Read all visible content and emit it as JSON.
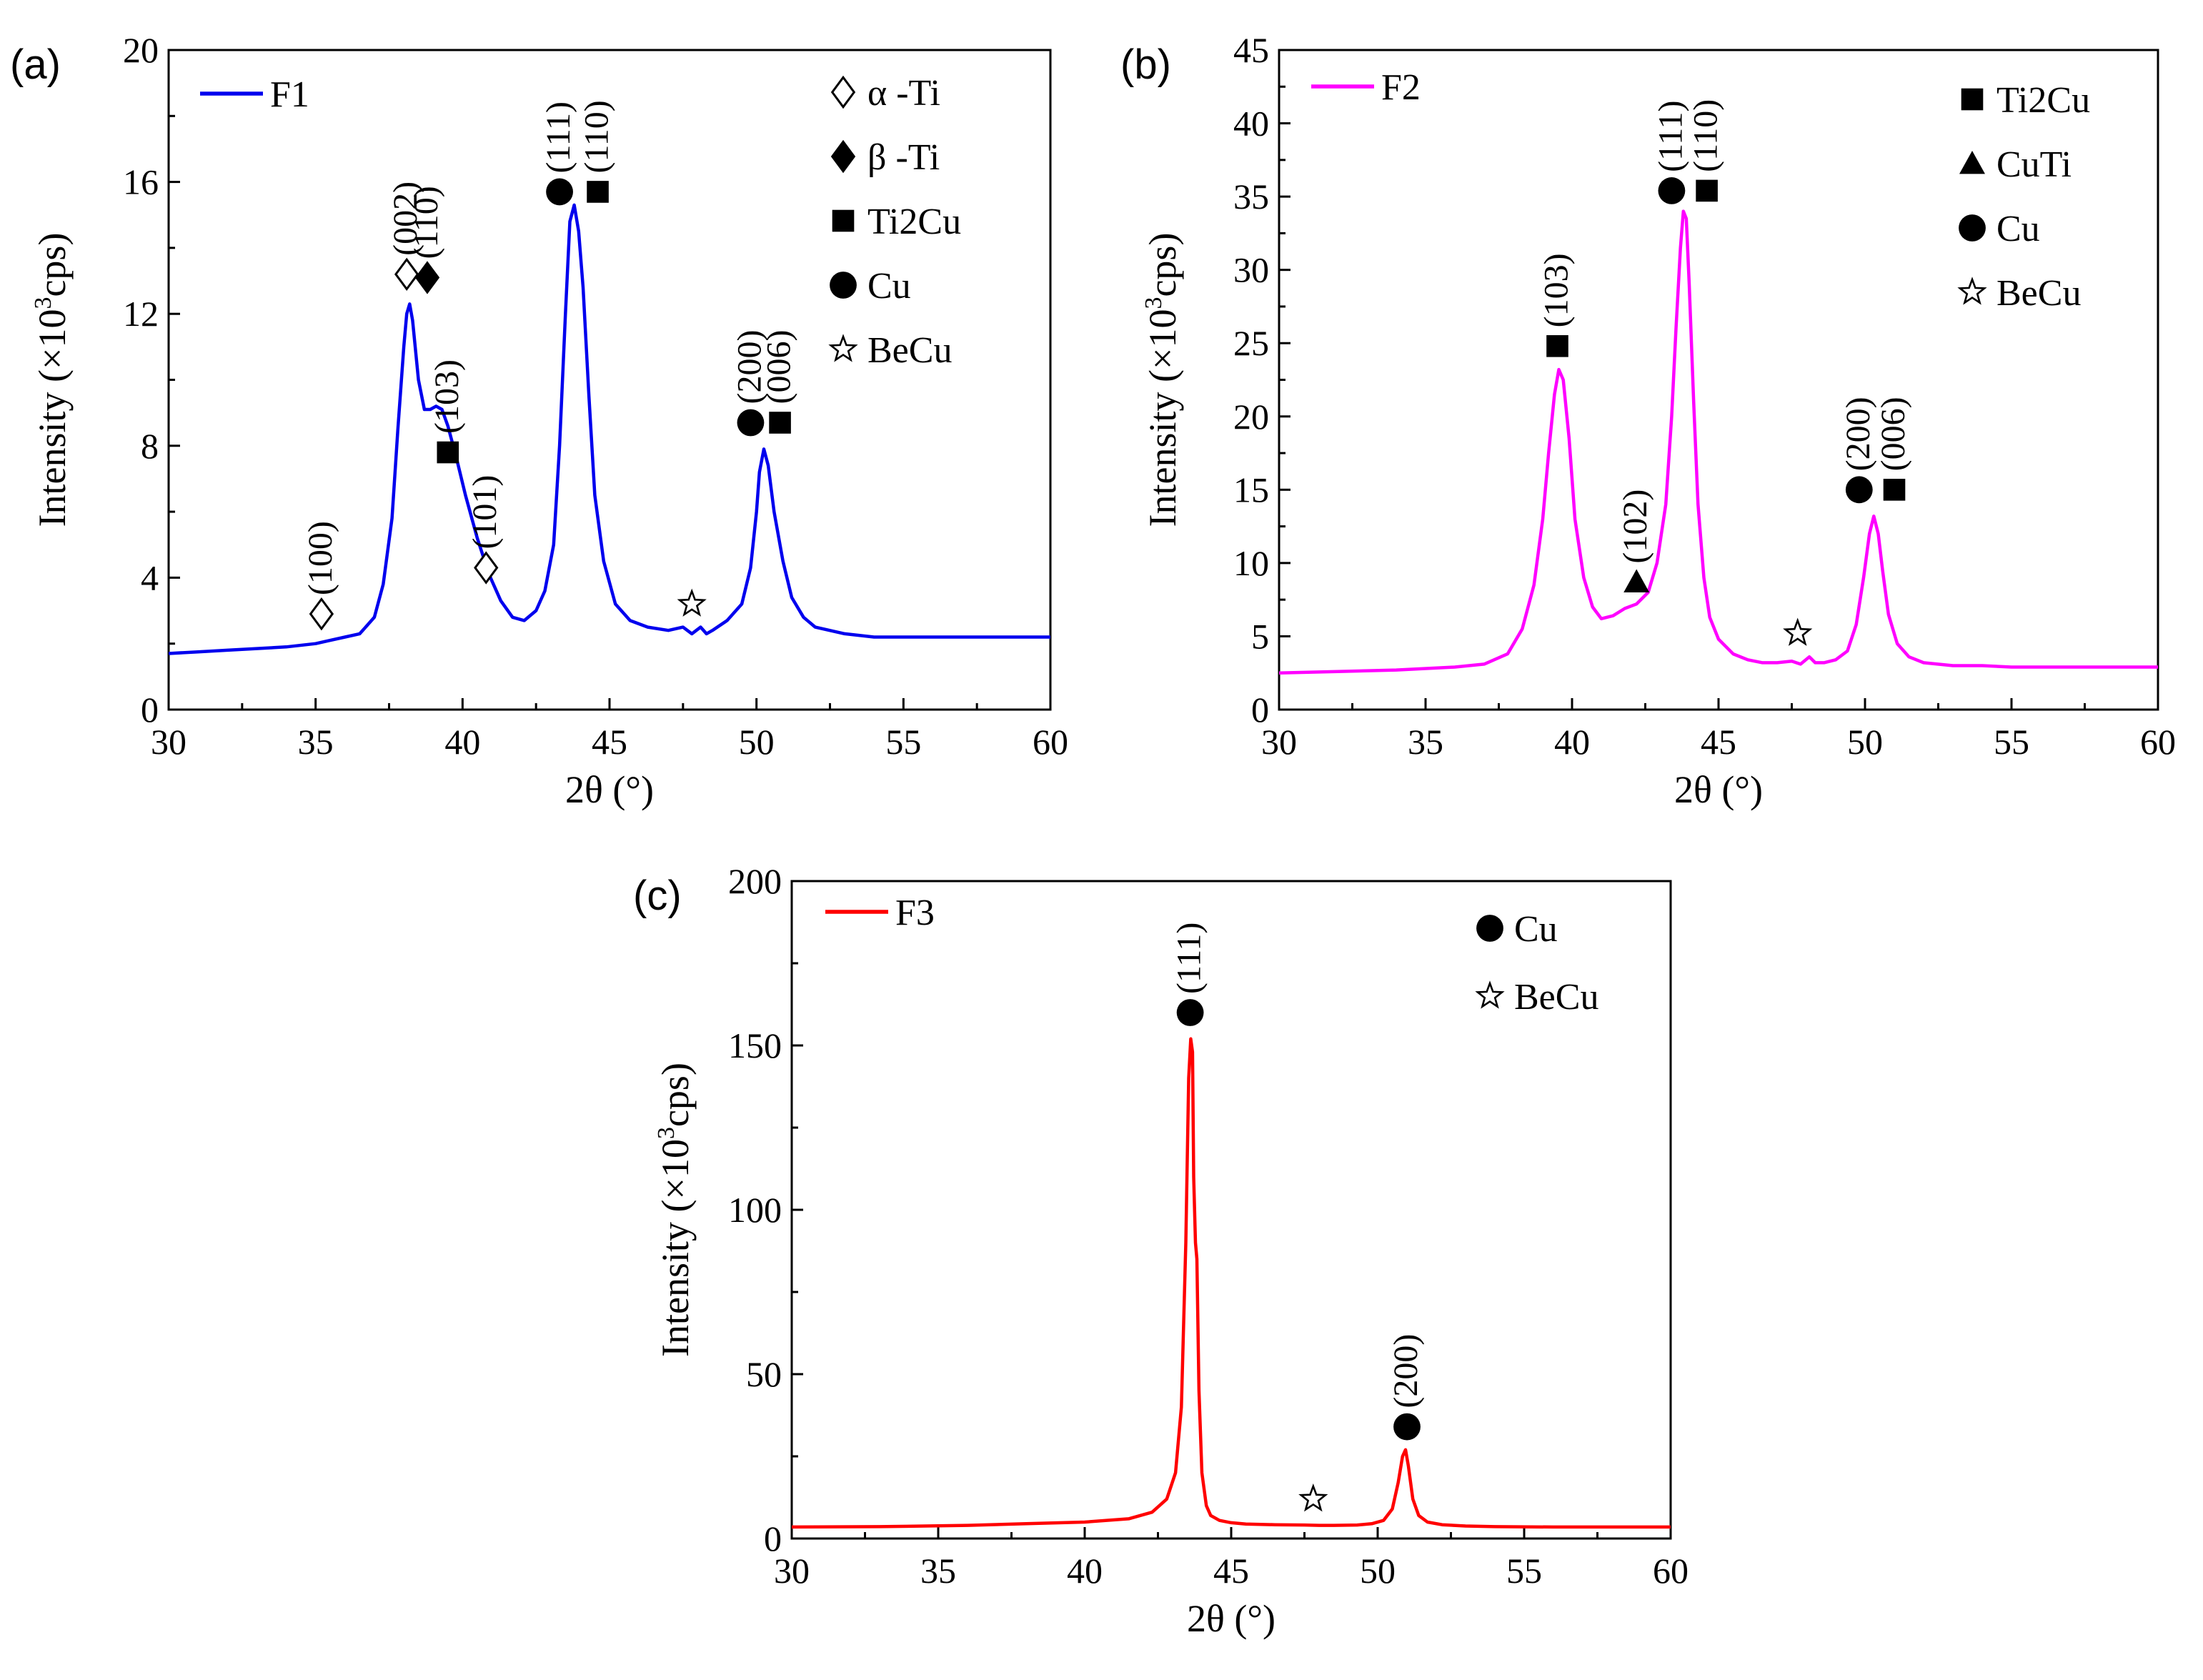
{
  "chart_data": [
    {
      "panel": "(a)",
      "type": "line",
      "title": "",
      "xlabel": "2θ (°)",
      "ylabel_main": "Intensity (×10",
      "ylabel_sup": "3",
      "ylabel_end": "cps)",
      "xlim": [
        30,
        60
      ],
      "ylim": [
        0,
        20
      ],
      "xticks": [
        30,
        35,
        40,
        45,
        50,
        55,
        60
      ],
      "yticks": [
        0,
        4,
        8,
        12,
        16,
        20
      ],
      "series": [
        {
          "name": "F1",
          "color": "#0000ee",
          "x": [
            30,
            31,
            32,
            33,
            34,
            35,
            35.5,
            36,
            36.5,
            37,
            37.3,
            37.6,
            37.8,
            38.0,
            38.1,
            38.2,
            38.3,
            38.5,
            38.7,
            38.9,
            39.1,
            39.3,
            39.5,
            39.8,
            40.1,
            40.5,
            40.9,
            41.3,
            41.7,
            42.1,
            42.5,
            42.8,
            43.1,
            43.3,
            43.5,
            43.65,
            43.8,
            43.95,
            44.1,
            44.3,
            44.5,
            44.8,
            45.2,
            45.7,
            46.3,
            47,
            47.5,
            47.8,
            48.1,
            48.3,
            48.5,
            49,
            49.5,
            49.8,
            50.0,
            50.1,
            50.25,
            50.4,
            50.6,
            50.9,
            51.2,
            51.6,
            52,
            53,
            54,
            55,
            56,
            57,
            58,
            59,
            60
          ],
          "y": [
            1.7,
            1.75,
            1.8,
            1.85,
            1.9,
            2.0,
            2.1,
            2.2,
            2.3,
            2.8,
            3.8,
            5.8,
            8.5,
            11.0,
            12.0,
            12.3,
            11.8,
            10.0,
            9.1,
            9.1,
            9.2,
            9.1,
            8.6,
            7.6,
            6.5,
            5.2,
            4.1,
            3.3,
            2.8,
            2.7,
            3.0,
            3.6,
            5.0,
            8.0,
            12.0,
            14.8,
            15.3,
            14.5,
            12.8,
            9.5,
            6.5,
            4.5,
            3.2,
            2.7,
            2.5,
            2.4,
            2.5,
            2.3,
            2.5,
            2.3,
            2.4,
            2.7,
            3.2,
            4.3,
            6.0,
            7.2,
            7.9,
            7.4,
            6.0,
            4.5,
            3.4,
            2.8,
            2.5,
            2.3,
            2.2,
            2.2,
            2.2,
            2.2,
            2.2,
            2.2,
            2.2
          ]
        }
      ],
      "legend": [
        "α -Ti",
        "β -Ti",
        "Ti2Cu",
        "Cu",
        "BeCu"
      ],
      "peak_annotations": [
        {
          "x": 35.2,
          "y": 2.9,
          "marker": "diamond-open",
          "label": "(100)"
        },
        {
          "x": 38.1,
          "y": 13.2,
          "marker": "diamond-open",
          "label": "(002)"
        },
        {
          "x": 38.8,
          "y": 13.1,
          "marker": "diamond-filled",
          "label": "(110)"
        },
        {
          "x": 39.5,
          "y": 7.8,
          "marker": "square",
          "label": "(103)"
        },
        {
          "x": 40.8,
          "y": 4.3,
          "marker": "diamond-open",
          "label": "(101)"
        },
        {
          "x": 43.3,
          "y": 15.7,
          "marker": "circle",
          "label": "(111)"
        },
        {
          "x": 44.6,
          "y": 15.7,
          "marker": "square",
          "label": "(110)"
        },
        {
          "x": 47.8,
          "y": 3.2,
          "marker": "star",
          "label": ""
        },
        {
          "x": 49.8,
          "y": 8.7,
          "marker": "circle",
          "label": "(200)"
        },
        {
          "x": 50.8,
          "y": 8.7,
          "marker": "square",
          "label": "(006)"
        }
      ]
    },
    {
      "panel": "(b)",
      "type": "line",
      "title": "",
      "xlabel": "2θ (°)",
      "ylabel_main": "Intensity (×10",
      "ylabel_sup": "3",
      "ylabel_end": "cps)",
      "xlim": [
        30,
        60
      ],
      "ylim": [
        0,
        45
      ],
      "xticks": [
        30,
        35,
        40,
        45,
        50,
        55,
        60
      ],
      "yticks": [
        0,
        5,
        10,
        15,
        20,
        25,
        30,
        35,
        40,
        45
      ],
      "series": [
        {
          "name": "F2",
          "color": "#ff00ff",
          "x": [
            30,
            32,
            34,
            36,
            37,
            37.8,
            38.3,
            38.7,
            39.0,
            39.2,
            39.4,
            39.55,
            39.7,
            39.9,
            40.1,
            40.4,
            40.7,
            41.0,
            41.4,
            41.8,
            42.2,
            42.6,
            42.9,
            43.2,
            43.4,
            43.55,
            43.7,
            43.8,
            43.9,
            44.0,
            44.15,
            44.3,
            44.5,
            44.7,
            45.0,
            45.5,
            46,
            46.5,
            47,
            47.5,
            47.8,
            48.1,
            48.3,
            48.6,
            49,
            49.4,
            49.7,
            49.95,
            50.15,
            50.3,
            50.45,
            50.6,
            50.8,
            51.1,
            51.5,
            52,
            53,
            54,
            55,
            56,
            57,
            58,
            59,
            60
          ],
          "y": [
            2.5,
            2.6,
            2.7,
            2.9,
            3.1,
            3.8,
            5.5,
            8.5,
            13.0,
            17.5,
            21.5,
            23.2,
            22.5,
            18.5,
            13.0,
            9.0,
            7.0,
            6.2,
            6.4,
            6.9,
            7.2,
            8.0,
            10.0,
            14.0,
            20.0,
            26.0,
            31.5,
            34.0,
            33.5,
            29.0,
            21.0,
            14.0,
            9.0,
            6.3,
            4.8,
            3.8,
            3.4,
            3.2,
            3.2,
            3.3,
            3.1,
            3.6,
            3.2,
            3.2,
            3.4,
            4.0,
            5.8,
            9.0,
            12.0,
            13.2,
            12.0,
            9.5,
            6.5,
            4.5,
            3.6,
            3.2,
            3.0,
            3.0,
            2.9,
            2.9,
            2.9,
            2.9,
            2.9,
            2.9
          ]
        }
      ],
      "legend": [
        "Ti2Cu",
        "CuTi",
        "Cu",
        "BeCu"
      ],
      "peak_annotations": [
        {
          "x": 39.5,
          "y": 24.8,
          "marker": "square",
          "label": "(103)"
        },
        {
          "x": 42.2,
          "y": 8.7,
          "marker": "triangle",
          "label": "(102)"
        },
        {
          "x": 43.4,
          "y": 35.4,
          "marker": "circle",
          "label": "(111)"
        },
        {
          "x": 44.6,
          "y": 35.4,
          "marker": "square",
          "label": "(110)"
        },
        {
          "x": 47.7,
          "y": 5.2,
          "marker": "star",
          "label": ""
        },
        {
          "x": 49.8,
          "y": 15.0,
          "marker": "circle",
          "label": "(200)"
        },
        {
          "x": 51.0,
          "y": 15.0,
          "marker": "square",
          "label": "(006)"
        }
      ]
    },
    {
      "panel": "(c)",
      "type": "line",
      "title": "",
      "xlabel": "2θ (°)",
      "ylabel_main": "Intensity (×10",
      "ylabel_sup": "3",
      "ylabel_end": "cps)",
      "xlim": [
        30,
        60
      ],
      "ylim": [
        0,
        200
      ],
      "xticks": [
        30,
        35,
        40,
        45,
        50,
        55,
        60
      ],
      "yticks": [
        0,
        50,
        100,
        150,
        200
      ],
      "series": [
        {
          "name": "F3",
          "color": "#ff0000",
          "x": [
            30,
            33,
            36,
            38,
            40,
            41.5,
            42.3,
            42.8,
            43.1,
            43.3,
            43.45,
            43.55,
            43.62,
            43.68,
            43.72,
            43.78,
            43.83,
            43.9,
            44.0,
            44.15,
            44.3,
            44.6,
            45.0,
            45.5,
            46.5,
            47.5,
            48,
            48.5,
            49.3,
            49.8,
            50.2,
            50.5,
            50.7,
            50.85,
            50.95,
            51.05,
            51.2,
            51.4,
            51.7,
            52.2,
            53,
            54,
            56,
            58,
            60
          ],
          "y": [
            3.5,
            3.6,
            4.0,
            4.5,
            5.0,
            6.0,
            8.0,
            12.0,
            20.0,
            40.0,
            90.0,
            140.0,
            152.0,
            148.0,
            110.0,
            90.0,
            85.0,
            45.0,
            20.0,
            10.0,
            7.0,
            5.5,
            4.8,
            4.4,
            4.2,
            4.1,
            4.0,
            4.0,
            4.1,
            4.5,
            5.5,
            9.0,
            17.0,
            25.0,
            27.0,
            22.0,
            12.0,
            7.0,
            5.0,
            4.2,
            3.8,
            3.6,
            3.5,
            3.5,
            3.5
          ]
        }
      ],
      "legend": [
        "Cu",
        "BeCu"
      ],
      "peak_annotations": [
        {
          "x": 43.6,
          "y": 160,
          "marker": "circle",
          "label": "(111)"
        },
        {
          "x": 47.8,
          "y": 12,
          "marker": "star",
          "label": ""
        },
        {
          "x": 51.0,
          "y": 34,
          "marker": "circle",
          "label": "(200)"
        }
      ]
    }
  ]
}
